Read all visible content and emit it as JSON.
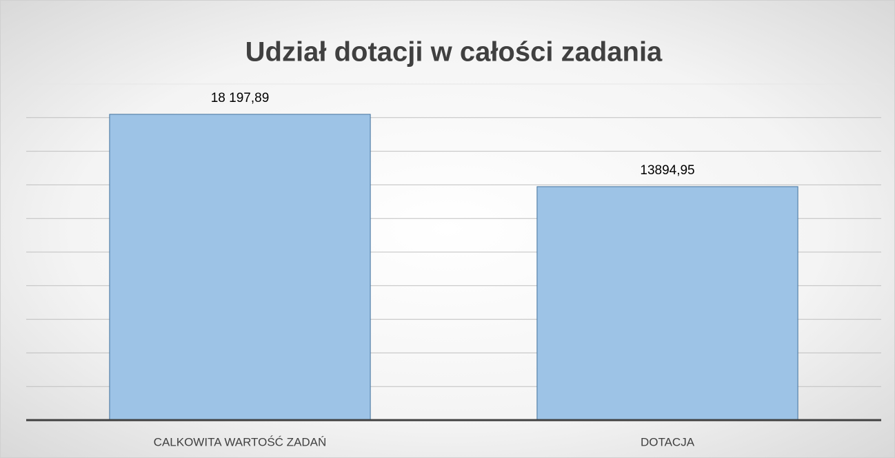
{
  "chart_data": {
    "type": "bar",
    "title": "Udział dotacji w całości zadania",
    "categories": [
      "CALKOWITA WARTOŚĆ ZADAŃ",
      "DOTACJA"
    ],
    "values": [
      18197.89,
      13894.95
    ],
    "value_labels": [
      "18 197,89",
      "13894,95"
    ],
    "color": "#9dc3e6",
    "ylim": [
      0,
      20000
    ],
    "yticks": [
      0,
      2000,
      4000,
      6000,
      8000,
      10000,
      12000,
      14000,
      16000,
      18000,
      20000
    ],
    "grid": true
  }
}
